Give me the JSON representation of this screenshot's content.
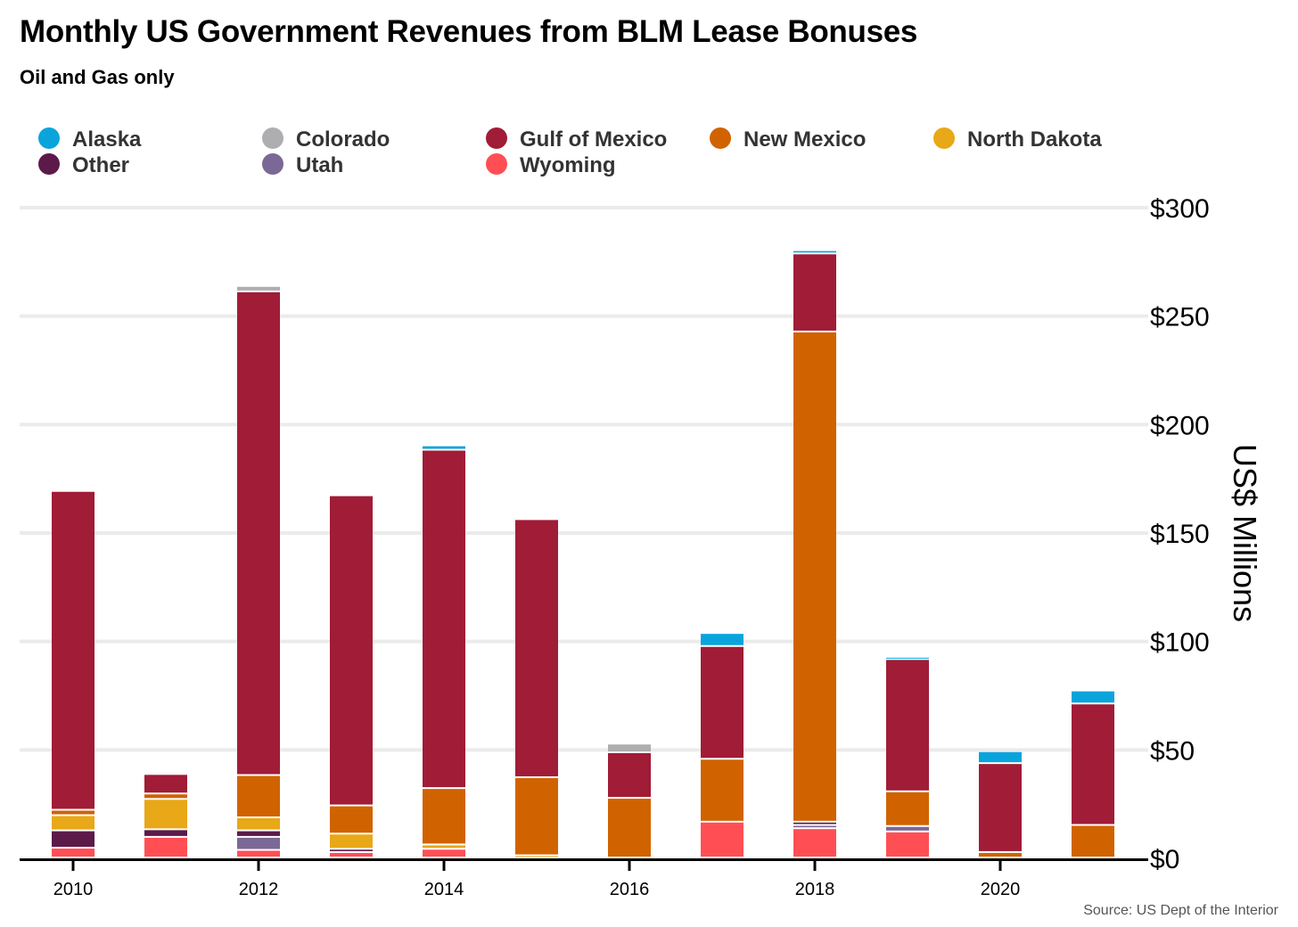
{
  "title": "Monthly US Government Revenues from BLM Lease Bonuses",
  "subtitle": "Oil and Gas only",
  "source": "Source: US Dept of the Interior",
  "chart_data": {
    "type": "bar",
    "stacked": true,
    "title": "Monthly US Government Revenues from BLM Lease Bonuses",
    "subtitle": "Oil and Gas only",
    "xlabel": "",
    "ylabel": "US$ Millions",
    "ylim": [
      0,
      300
    ],
    "yticks": [
      0,
      50,
      100,
      150,
      200,
      250,
      300
    ],
    "ytick_labels": [
      "$0",
      "$50",
      "$100",
      "$150",
      "$200",
      "$250",
      "$300"
    ],
    "xtick_labels": [
      "2010",
      "2012",
      "2014",
      "2016",
      "2018",
      "2020"
    ],
    "categories": [
      "2010",
      "2011",
      "2012",
      "2013",
      "2014",
      "2015",
      "2016",
      "2017",
      "2018",
      "2019",
      "2020",
      "2021"
    ],
    "legend_position": "top",
    "grid": true,
    "legend_order": [
      "Alaska",
      "Colorado",
      "Gulf of Mexico",
      "New Mexico",
      "North Dakota",
      "Other",
      "Utah",
      "Wyoming"
    ],
    "series": [
      {
        "name": "Wyoming",
        "color": "#ff4f55",
        "values": [
          4.5,
          9.5,
          3.5,
          2.5,
          4,
          0,
          0,
          16.5,
          13.5,
          12,
          0,
          0
        ]
      },
      {
        "name": "Utah",
        "color": "#7b6896",
        "values": [
          0,
          0,
          6,
          0,
          0,
          0,
          0,
          0,
          1.5,
          2.5,
          0,
          0
        ]
      },
      {
        "name": "Other",
        "color": "#5c1a4a",
        "values": [
          8,
          3.5,
          3,
          1.5,
          0,
          0,
          0,
          0,
          1.5,
          0,
          0,
          0
        ]
      },
      {
        "name": "North Dakota",
        "color": "#e8a817",
        "values": [
          7,
          14,
          6,
          7,
          2,
          1,
          0,
          0,
          0,
          0,
          0,
          0
        ]
      },
      {
        "name": "New Mexico",
        "color": "#d06300",
        "values": [
          2.5,
          2.5,
          19.5,
          13,
          26,
          36,
          27.5,
          29,
          226,
          16,
          2.5,
          15
        ]
      },
      {
        "name": "Gulf of Mexico",
        "color": "#a01c37",
        "values": [
          147,
          9,
          223,
          143,
          156,
          119,
          21,
          52,
          36,
          61,
          41,
          56
        ]
      },
      {
        "name": "Colorado",
        "color": "#aeaeb0",
        "values": [
          0,
          0,
          2.5,
          0,
          0,
          0,
          4,
          0,
          0,
          0,
          0,
          0
        ]
      },
      {
        "name": "Alaska",
        "color": "#0aa4dd",
        "values": [
          0,
          0,
          0,
          0,
          2,
          0,
          0,
          6,
          1.5,
          1,
          5.5,
          6
        ]
      }
    ]
  }
}
